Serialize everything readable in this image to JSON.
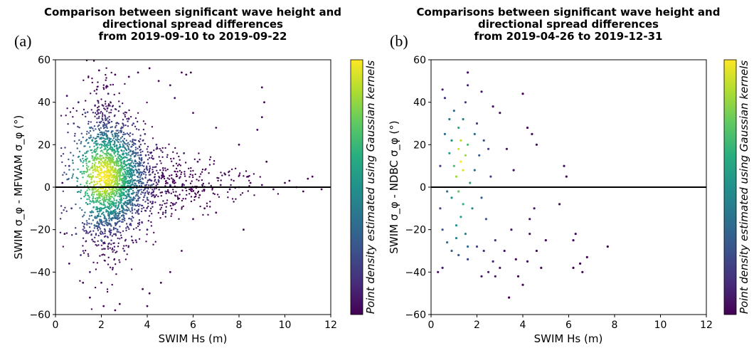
{
  "chart_data": [
    {
      "type": "scatter",
      "panel_label": "(a)",
      "title_lines": [
        "Comparison between significant wave height and",
        "directional spread differences",
        "from 2019-09-10 to 2019-09-22"
      ],
      "xlabel": "SWIM Hs (m)",
      "ylabel": "SWIM σ_φ - MFWAM σ_φ (°)",
      "xlim": [
        0,
        12
      ],
      "ylim": [
        -60,
        60
      ],
      "xticks": [
        "0",
        "2",
        "4",
        "6",
        "8",
        "10",
        "12"
      ],
      "yticks": [
        "−60",
        "−40",
        "−20",
        "0",
        "20",
        "40",
        "60"
      ],
      "reference_line_y": 0,
      "colorbar_label": "Point density estimated using Gaussian kernels",
      "colormap": "viridis",
      "density_peak": {
        "x": 2.1,
        "y": 5
      },
      "points": [
        [
          2.1,
          5,
          1.0
        ],
        [
          2.0,
          8,
          0.95
        ],
        [
          2.2,
          2,
          0.95
        ],
        [
          1.9,
          12,
          0.85
        ],
        [
          2.3,
          -3,
          0.8
        ],
        [
          1.8,
          18,
          0.7
        ],
        [
          2.4,
          -8,
          0.7
        ],
        [
          1.6,
          22,
          0.55
        ],
        [
          2.5,
          -12,
          0.55
        ],
        [
          1.5,
          28,
          0.45
        ],
        [
          2.6,
          25,
          0.45
        ],
        [
          1.7,
          -18,
          0.45
        ],
        [
          2.8,
          15,
          0.5
        ],
        [
          3.0,
          5,
          0.55
        ],
        [
          3.2,
          -2,
          0.5
        ],
        [
          1.2,
          15,
          0.45
        ],
        [
          1.4,
          -8,
          0.5
        ],
        [
          2.0,
          -25,
          0.35
        ],
        [
          2.2,
          32,
          0.3
        ],
        [
          1.3,
          35,
          0.25
        ],
        [
          2.8,
          38,
          0.2
        ],
        [
          3.4,
          30,
          0.2
        ],
        [
          3.6,
          10,
          0.35
        ],
        [
          3.8,
          2,
          0.35
        ],
        [
          4.0,
          -5,
          0.3
        ],
        [
          4.2,
          1,
          0.3
        ],
        [
          4.5,
          3,
          0.25
        ],
        [
          4.8,
          -2,
          0.2
        ],
        [
          5.0,
          1,
          0.2
        ],
        [
          5.3,
          0,
          0.18
        ],
        [
          5.6,
          1,
          0.15
        ],
        [
          6.0,
          0,
          0.13
        ],
        [
          6.4,
          1,
          0.1
        ],
        [
          6.8,
          0,
          0.08
        ],
        [
          7.2,
          1,
          0.07
        ],
        [
          7.6,
          -1,
          0.05
        ],
        [
          8.0,
          0,
          0.04
        ],
        [
          8.5,
          2,
          0.02
        ],
        [
          9.0,
          1,
          0.02
        ],
        [
          9.5,
          -1,
          0.01
        ],
        [
          10.0,
          2,
          0.01
        ],
        [
          10.5,
          0,
          0.0
        ],
        [
          11.0,
          4,
          0.0
        ],
        [
          11.6,
          -1,
          0.0
        ],
        [
          1.0,
          40,
          0.1
        ],
        [
          0.8,
          30,
          0.15
        ],
        [
          0.6,
          10,
          0.15
        ],
        [
          0.7,
          -10,
          0.15
        ],
        [
          0.5,
          43,
          0.05
        ],
        [
          0.9,
          -22,
          0.2
        ],
        [
          1.1,
          -32,
          0.15
        ],
        [
          1.5,
          -40,
          0.1
        ],
        [
          2.0,
          -45,
          0.05
        ],
        [
          2.5,
          -38,
          0.1
        ],
        [
          3.0,
          -30,
          0.15
        ],
        [
          3.5,
          -25,
          0.1
        ],
        [
          4.0,
          -20,
          0.08
        ],
        [
          4.1,
          -50,
          0.0
        ],
        [
          4.0,
          -56,
          0.0
        ],
        [
          3.8,
          -48,
          0.02
        ],
        [
          2.8,
          -55,
          0.0
        ],
        [
          2.6,
          -58,
          0.0
        ],
        [
          2.1,
          -56,
          0.0
        ],
        [
          1.5,
          -52,
          0.02
        ],
        [
          1.9,
          55,
          0.0
        ],
        [
          2.6,
          53,
          0.0
        ],
        [
          3.2,
          52,
          0.0
        ],
        [
          3.6,
          54,
          0.02
        ],
        [
          4.1,
          56,
          0.0
        ],
        [
          4.5,
          50,
          0.02
        ],
        [
          5.0,
          48,
          0.02
        ],
        [
          5.5,
          54,
          0.0
        ],
        [
          5.7,
          53,
          0.0
        ],
        [
          5.9,
          54,
          0.0
        ],
        [
          5.2,
          42,
          0.05
        ],
        [
          6.0,
          35,
          0.05
        ],
        [
          7.0,
          28,
          0.03
        ],
        [
          8.0,
          20,
          0.02
        ],
        [
          8.8,
          27,
          0.0
        ],
        [
          9.0,
          47,
          0.0
        ],
        [
          9.1,
          40,
          0.0
        ],
        [
          9.0,
          33,
          0.0
        ],
        [
          9.2,
          12,
          0.0
        ],
        [
          8.2,
          -20,
          0.0
        ],
        [
          7.0,
          -12,
          0.02
        ],
        [
          6.0,
          -15,
          0.05
        ],
        [
          5.5,
          -30,
          0.02
        ],
        [
          5.0,
          -40,
          0.0
        ],
        [
          4.6,
          -45,
          0.0
        ],
        [
          6.5,
          -10,
          0.03
        ],
        [
          10.2,
          3,
          0.0
        ],
        [
          10.8,
          -2,
          0.0
        ],
        [
          11.2,
          5,
          0.0
        ],
        [
          7.4,
          6,
          0.05
        ],
        [
          8.4,
          5,
          0.02
        ],
        [
          6.2,
          12,
          0.08
        ],
        [
          5.6,
          16,
          0.1
        ],
        [
          4.4,
          20,
          0.15
        ],
        [
          3.9,
          25,
          0.15
        ],
        [
          4.8,
          -12,
          0.15
        ],
        [
          5.2,
          -8,
          0.12
        ],
        [
          3.3,
          -15,
          0.25
        ],
        [
          2.7,
          -20,
          0.3
        ],
        [
          0.4,
          -22,
          0.02
        ],
        [
          0.3,
          2,
          0.02
        ],
        [
          0.6,
          -36,
          0.03
        ],
        [
          1.2,
          -45,
          0.05
        ],
        [
          1.8,
          46,
          0.05
        ],
        [
          2.3,
          44,
          0.1
        ]
      ]
    },
    {
      "type": "scatter",
      "panel_label": "(b)",
      "title_lines": [
        "Comparisons between significant wave height and",
        "directional spread differences",
        "from 2019-04-26 to 2019-12-31"
      ],
      "xlabel": "SWIM Hs (m)",
      "ylabel": "SWIM σ_φ - NDBC σ_φ (°)",
      "xlim": [
        0,
        12
      ],
      "ylim": [
        -60,
        60
      ],
      "xticks": [
        "0",
        "2",
        "4",
        "6",
        "8",
        "10",
        "12"
      ],
      "yticks": [
        "−60",
        "−40",
        "−20",
        "0",
        "20",
        "40",
        "60"
      ],
      "reference_line_y": 0,
      "colorbar_label": "Point density estimated using Gaussian kernels",
      "colormap": "viridis",
      "density_peak": {
        "x": 1.3,
        "y": 12
      },
      "points": [
        [
          1.3,
          12,
          1.0
        ],
        [
          1.2,
          18,
          0.95
        ],
        [
          1.4,
          8,
          0.95
        ],
        [
          1.3,
          22,
          0.9
        ],
        [
          1.1,
          5,
          0.85
        ],
        [
          1.5,
          15,
          0.85
        ],
        [
          1.2,
          -2,
          0.75
        ],
        [
          1.4,
          -8,
          0.65
        ],
        [
          1.0,
          10,
          0.7
        ],
        [
          1.6,
          20,
          0.7
        ],
        [
          1.3,
          -14,
          0.55
        ],
        [
          1.1,
          -18,
          0.5
        ],
        [
          1.5,
          -22,
          0.45
        ],
        [
          0.9,
          22,
          0.5
        ],
        [
          0.9,
          -5,
          0.5
        ],
        [
          1.7,
          2,
          0.55
        ],
        [
          1.8,
          -10,
          0.45
        ],
        [
          1.2,
          28,
          0.6
        ],
        [
          1.4,
          32,
          0.45
        ],
        [
          0.8,
          32,
          0.4
        ],
        [
          1.0,
          36,
          0.35
        ],
        [
          1.5,
          40,
          0.2
        ],
        [
          1.6,
          48,
          0.1
        ],
        [
          1.6,
          54,
          0.05
        ],
        [
          0.6,
          42,
          0.15
        ],
        [
          0.5,
          46,
          0.1
        ],
        [
          0.7,
          -26,
          0.35
        ],
        [
          0.9,
          -30,
          0.3
        ],
        [
          1.2,
          -32,
          0.3
        ],
        [
          1.6,
          -34,
          0.2
        ],
        [
          0.5,
          -20,
          0.25
        ],
        [
          0.4,
          -10,
          0.2
        ],
        [
          0.4,
          10,
          0.2
        ],
        [
          0.3,
          -40,
          0.05
        ],
        [
          0.5,
          -38,
          0.08
        ],
        [
          1.9,
          8,
          0.35
        ],
        [
          2.1,
          15,
          0.3
        ],
        [
          2.3,
          22,
          0.25
        ],
        [
          2.5,
          18,
          0.2
        ],
        [
          2.6,
          5,
          0.2
        ],
        [
          2.2,
          -5,
          0.3
        ],
        [
          2.4,
          -15,
          0.25
        ],
        [
          2.8,
          -25,
          0.15
        ],
        [
          2.0,
          -28,
          0.2
        ],
        [
          1.9,
          25,
          0.35
        ],
        [
          2.7,
          -35,
          0.1
        ],
        [
          3.0,
          -38,
          0.05
        ],
        [
          2.8,
          -42,
          0.05
        ],
        [
          2.2,
          -42,
          0.05
        ],
        [
          2.5,
          -40,
          0.08
        ],
        [
          3.2,
          -30,
          0.05
        ],
        [
          3.5,
          -20,
          0.05
        ],
        [
          3.0,
          35,
          0.05
        ],
        [
          2.7,
          38,
          0.05
        ],
        [
          2.2,
          45,
          0.05
        ],
        [
          3.4,
          -52,
          0.0
        ],
        [
          3.8,
          -42,
          0.0
        ],
        [
          4.0,
          -46,
          0.0
        ],
        [
          4.2,
          -35,
          0.03
        ],
        [
          4.3,
          -15,
          0.05
        ],
        [
          4.5,
          -10,
          0.05
        ],
        [
          4.2,
          28,
          0.03
        ],
        [
          4.4,
          25,
          0.03
        ],
        [
          4.6,
          20,
          0.03
        ],
        [
          4.0,
          44,
          0.0
        ],
        [
          4.3,
          -22,
          0.05
        ],
        [
          4.6,
          -30,
          0.03
        ],
        [
          4.8,
          -38,
          0.02
        ],
        [
          5.0,
          -25,
          0.02
        ],
        [
          5.6,
          -8,
          0.03
        ],
        [
          5.8,
          10,
          0.03
        ],
        [
          5.9,
          5,
          0.03
        ],
        [
          6.2,
          -25,
          0.02
        ],
        [
          6.3,
          -22,
          0.02
        ],
        [
          6.5,
          -36,
          0.0
        ],
        [
          6.8,
          -33,
          0.0
        ],
        [
          6.6,
          -40,
          0.0
        ],
        [
          6.2,
          -38,
          0.0
        ],
        [
          7.7,
          -28,
          0.0
        ],
        [
          3.7,
          -34,
          0.03
        ],
        [
          3.3,
          18,
          0.05
        ],
        [
          3.6,
          8,
          0.05
        ],
        [
          0.7,
          -2,
          0.4
        ],
        [
          0.8,
          16,
          0.55
        ],
        [
          1.6,
          -28,
          0.35
        ],
        [
          1.1,
          -24,
          0.45
        ],
        [
          0.6,
          25,
          0.35
        ],
        [
          2.0,
          30,
          0.2
        ],
        [
          2.3,
          -30,
          0.15
        ]
      ]
    }
  ]
}
